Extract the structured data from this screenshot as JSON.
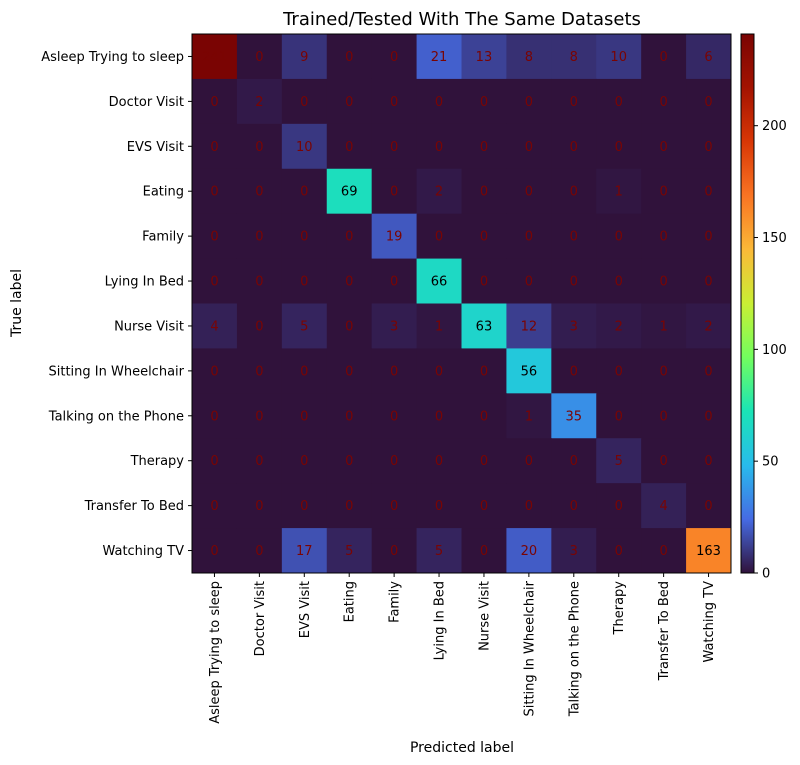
{
  "chart_data": {
    "type": "heatmap",
    "title": "Trained/Tested With The Same Datasets",
    "xlabel": "Predicted label",
    "ylabel": "True label",
    "labels": [
      "Asleep Trying to sleep",
      "Doctor Visit",
      "EVS Visit",
      "Eating",
      "Family",
      "Lying In Bed",
      "Nurse Visit",
      "Sitting In Wheelchair",
      "Talking on the Phone",
      "Therapy",
      "Transfer To Bed",
      "Watching TV"
    ],
    "matrix": [
      [
        241,
        0,
        9,
        0,
        0,
        21,
        13,
        8,
        8,
        10,
        0,
        6
      ],
      [
        0,
        2,
        0,
        0,
        0,
        0,
        0,
        0,
        0,
        0,
        0,
        0
      ],
      [
        0,
        0,
        10,
        0,
        0,
        0,
        0,
        0,
        0,
        0,
        0,
        0
      ],
      [
        0,
        0,
        0,
        69,
        0,
        2,
        0,
        0,
        0,
        1,
        0,
        0
      ],
      [
        0,
        0,
        0,
        0,
        19,
        0,
        0,
        0,
        0,
        0,
        0,
        0
      ],
      [
        0,
        0,
        0,
        0,
        0,
        66,
        0,
        0,
        0,
        0,
        0,
        0
      ],
      [
        4,
        0,
        5,
        0,
        3,
        1,
        63,
        12,
        3,
        2,
        1,
        2
      ],
      [
        0,
        0,
        0,
        0,
        0,
        0,
        0,
        56,
        0,
        0,
        0,
        0
      ],
      [
        0,
        0,
        0,
        0,
        0,
        0,
        0,
        1,
        35,
        0,
        0,
        0
      ],
      [
        0,
        0,
        0,
        0,
        0,
        0,
        0,
        0,
        0,
        5,
        0,
        0
      ],
      [
        0,
        0,
        0,
        0,
        0,
        0,
        0,
        0,
        0,
        0,
        4,
        0
      ],
      [
        0,
        0,
        17,
        5,
        0,
        5,
        0,
        20,
        3,
        0,
        0,
        163
      ]
    ],
    "colorbar": {
      "range": [
        0,
        241
      ],
      "ticks": [
        0,
        50,
        100,
        150,
        200
      ],
      "colormap": "turbo"
    },
    "text_color_dark": "#7a0403",
    "text_color_light": "#000000"
  }
}
